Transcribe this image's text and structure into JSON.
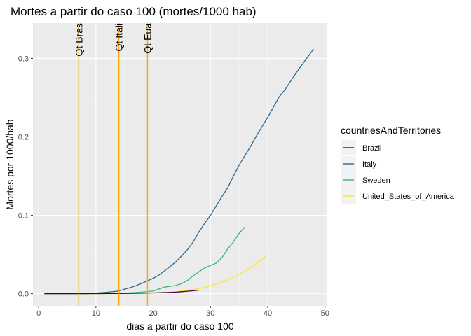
{
  "chart_data": {
    "type": "line",
    "title": "Mortes a partir do caso 100 (mortes/1000 hab)",
    "xlabel": "dias a partir do caso 100",
    "ylabel": "Mortes por 1000/hab",
    "xlim": [
      -1,
      50.4
    ],
    "ylim": [
      -0.0155,
      0.345
    ],
    "xticks": [
      0,
      10,
      20,
      30,
      40,
      50
    ],
    "yticks": [
      0.0,
      0.1,
      0.2,
      0.3
    ],
    "ytick_labels": [
      "0.0",
      "0.1",
      "0.2",
      "0.3"
    ],
    "legend": {
      "title": "countriesAndTerritories",
      "position": "right"
    },
    "colors": {
      "panel": "#ebebeb",
      "grid_major": "#ffffff",
      "grid_minor": "#f4f4f4",
      "vline": "#ffa500"
    },
    "vlines": [
      {
        "x": 7,
        "label": "Qt Bras"
      },
      {
        "x": 14,
        "label": "Qt Itali"
      },
      {
        "x": 19,
        "label": "Qt Eua"
      }
    ],
    "series": [
      {
        "name": "Brazil",
        "color": "#440154",
        "x": [
          1,
          2,
          3,
          4,
          5,
          6,
          7,
          8,
          9,
          10,
          11,
          12,
          13,
          14,
          15,
          16,
          17,
          18,
          19,
          20,
          21,
          22,
          23,
          24,
          25,
          26,
          27,
          28
        ],
        "y": [
          0,
          0,
          0,
          0,
          0,
          0,
          0,
          0,
          0.0001,
          0.0001,
          0.0001,
          0.0002,
          0.0002,
          0.0003,
          0.0004,
          0.0005,
          0.0006,
          0.0007,
          0.0008,
          0.001,
          0.0012,
          0.0014,
          0.0017,
          0.002,
          0.0025,
          0.0031,
          0.0038,
          0.0046
        ]
      },
      {
        "name": "Italy",
        "color": "#31688e",
        "x": [
          1,
          2,
          3,
          4,
          5,
          6,
          7,
          8,
          9,
          10,
          11,
          12,
          13,
          14,
          15,
          16,
          17,
          18,
          19,
          20,
          21,
          22,
          23,
          24,
          25,
          26,
          27,
          28,
          29,
          30,
          31,
          32,
          33,
          34,
          35,
          36,
          37,
          38,
          39,
          40,
          41,
          42,
          43,
          44,
          45,
          46,
          47,
          48
        ],
        "y": [
          0,
          0,
          0,
          0,
          0,
          0.0001,
          0.0002,
          0.0003,
          0.0005,
          0.0008,
          0.0013,
          0.0019,
          0.0027,
          0.0034,
          0.0058,
          0.0077,
          0.0103,
          0.0132,
          0.0165,
          0.0196,
          0.0238,
          0.0292,
          0.0349,
          0.041,
          0.0484,
          0.0564,
          0.0663,
          0.079,
          0.09,
          0.1,
          0.112,
          0.124,
          0.135,
          0.15,
          0.164,
          0.176,
          0.188,
          0.201,
          0.213,
          0.225,
          0.238,
          0.251,
          0.26,
          0.271,
          0.282,
          0.292,
          0.302,
          0.312
        ]
      },
      {
        "name": "Sweden",
        "color": "#35b779",
        "x": [
          1,
          2,
          3,
          4,
          5,
          6,
          7,
          8,
          9,
          10,
          11,
          12,
          13,
          14,
          15,
          16,
          17,
          18,
          19,
          20,
          21,
          22,
          23,
          24,
          25,
          26,
          27,
          28,
          29,
          30,
          31,
          32,
          33,
          34,
          35,
          36
        ],
        "y": [
          0,
          0,
          0,
          0,
          0,
          0,
          0,
          0,
          0,
          0.0001,
          0.0002,
          0.0003,
          0.0004,
          0.0006,
          0.0008,
          0.0011,
          0.0015,
          0.002,
          0.0026,
          0.0035,
          0.006,
          0.0085,
          0.0095,
          0.0105,
          0.013,
          0.017,
          0.023,
          0.028,
          0.033,
          0.036,
          0.039,
          0.046,
          0.057,
          0.066,
          0.077,
          0.085
        ]
      },
      {
        "name": "United_States_of_America",
        "color": "#fde725",
        "x": [
          1,
          2,
          3,
          4,
          5,
          6,
          7,
          8,
          9,
          10,
          11,
          12,
          13,
          14,
          15,
          16,
          17,
          18,
          19,
          20,
          21,
          22,
          23,
          24,
          25,
          26,
          27,
          28,
          29,
          30,
          31,
          32,
          33,
          34,
          35,
          36,
          37,
          38,
          39,
          40
        ],
        "y": [
          0,
          0,
          0,
          0,
          0,
          0,
          0,
          0,
          0,
          0,
          0,
          0,
          0.0001,
          0.0001,
          0.0002,
          0.0003,
          0.0004,
          0.0005,
          0.0007,
          0.0009,
          0.0012,
          0.0016,
          0.0021,
          0.0027,
          0.0034,
          0.0043,
          0.0054,
          0.0066,
          0.008,
          0.01,
          0.0125,
          0.015,
          0.018,
          0.021,
          0.025,
          0.029,
          0.033,
          0.038,
          0.044,
          0.05
        ]
      }
    ]
  }
}
